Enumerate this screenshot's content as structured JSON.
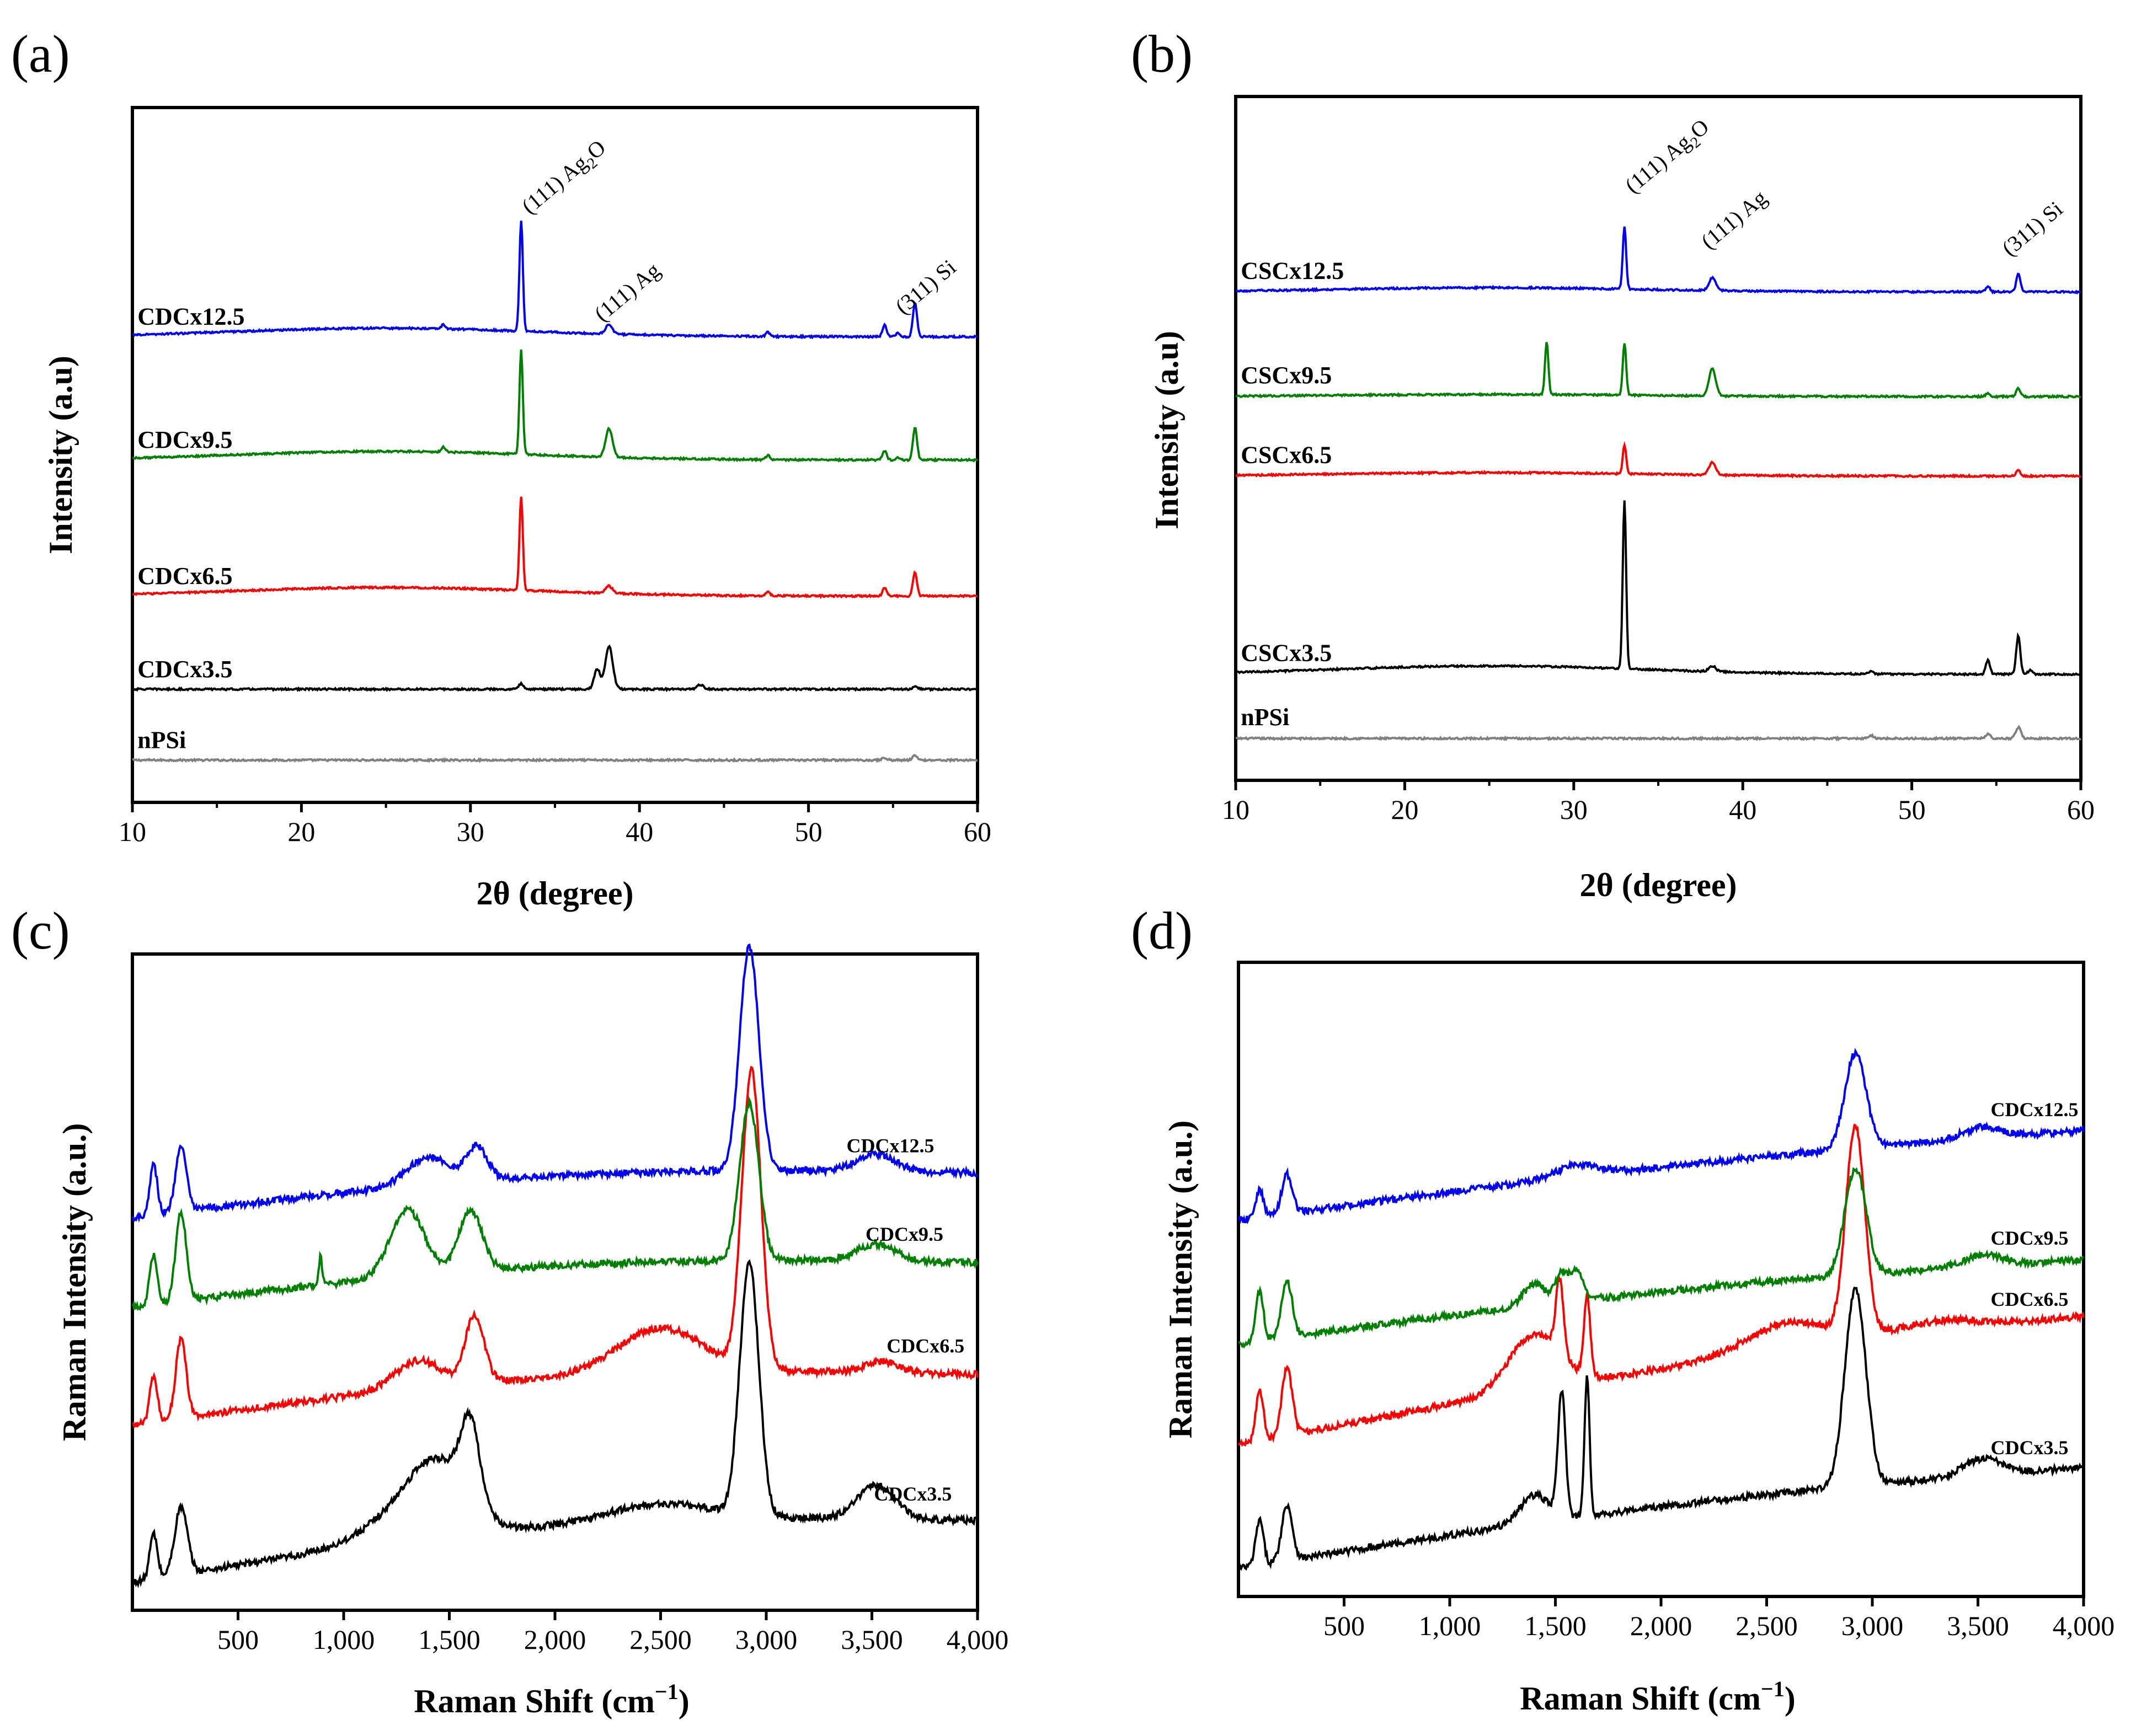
{
  "chart_data": [
    {
      "id": "a",
      "panel_label": "(a)",
      "type": "line",
      "xlabel": "2θ (degree)",
      "ylabel": "Intensity (a.u)",
      "xlim": [
        10,
        60
      ],
      "xticks": [
        10,
        20,
        30,
        40,
        50,
        60
      ],
      "xtick_labels": [
        "10",
        "20",
        "30",
        "40",
        "50",
        "60"
      ],
      "yticks": false,
      "series": [
        {
          "name": "nPSi",
          "color": "#808080",
          "baseline": 0.9,
          "hump": 0,
          "label_x": 10.3,
          "peaks": [
            [
              54.5,
              0.3,
              0.15
            ],
            [
              56.3,
              0.6,
              0.15
            ]
          ]
        },
        {
          "name": "CDCx3.5",
          "color": "#000000",
          "baseline": 10.8,
          "hump": 0,
          "label_x": 10.3,
          "peaks": [
            [
              33.0,
              0.8,
              0.15
            ],
            [
              37.5,
              2.8,
              0.18
            ],
            [
              38.2,
              6.0,
              0.22
            ],
            [
              43.6,
              0.6,
              0.2
            ],
            [
              56.3,
              0.3,
              0.15
            ]
          ]
        },
        {
          "name": "CDCx6.5",
          "color": "#ff0000",
          "baseline": 23.8,
          "hump": 1.2,
          "label_x": 10.3,
          "peaks": [
            [
              33.0,
              13.0,
              0.1
            ],
            [
              38.2,
              1.0,
              0.2
            ],
            [
              47.6,
              0.5,
              0.12
            ],
            [
              54.5,
              1.2,
              0.12
            ],
            [
              56.3,
              3.3,
              0.12
            ]
          ]
        },
        {
          "name": "CDCx9.5",
          "color": "#008000",
          "baseline": 42.8,
          "hump": 1.2,
          "label_x": 10.3,
          "peaks": [
            [
              28.4,
              0.7,
              0.12
            ],
            [
              33.0,
              14.5,
              0.1
            ],
            [
              38.2,
              4.0,
              0.2
            ],
            [
              47.6,
              0.6,
              0.12
            ],
            [
              54.5,
              1.3,
              0.12
            ],
            [
              55.3,
              0.4,
              0.12
            ],
            [
              56.3,
              4.5,
              0.12
            ]
          ]
        },
        {
          "name": "CDCx12.5",
          "color": "#0000ff",
          "baseline": 60.0,
          "hump": 1.2,
          "label_x": 10.3,
          "peaks": [
            [
              28.4,
              0.6,
              0.12
            ],
            [
              33.0,
              15.5,
              0.1
            ],
            [
              38.2,
              1.3,
              0.2
            ],
            [
              47.6,
              0.6,
              0.12
            ],
            [
              54.5,
              1.6,
              0.12
            ],
            [
              55.3,
              0.5,
              0.12
            ],
            [
              56.3,
              4.8,
              0.12
            ]
          ]
        }
      ],
      "annotations": [
        {
          "text": "(111) Ag",
          "sub": "2",
          "tail": "O",
          "x": 33.5,
          "y": 77
        },
        {
          "text": "(111) Ag",
          "sub": "",
          "tail": "",
          "x": 37.8,
          "y": 62
        },
        {
          "text": "(311) Si",
          "sub": "",
          "tail": "",
          "x": 55.6,
          "y": 63
        }
      ]
    },
    {
      "id": "b",
      "panel_label": "(b)",
      "type": "line",
      "xlabel": "2θ (degree)",
      "ylabel": "Intensity (a.u)",
      "xlim": [
        10,
        60
      ],
      "xticks": [
        10,
        20,
        30,
        40,
        50,
        60
      ],
      "xtick_labels": [
        "10",
        "20",
        "30",
        "40",
        "50",
        "60"
      ],
      "yticks": false,
      "series": [
        {
          "name": "nPSi",
          "color": "#808080",
          "baseline": 4.0,
          "hump": 0,
          "label_x": 10.3,
          "peaks": [
            [
              47.6,
              0.4,
              0.15
            ],
            [
              54.5,
              0.6,
              0.15
            ],
            [
              56.3,
              1.6,
              0.15
            ]
          ]
        },
        {
          "name": "CSCx3.5",
          "color": "#000000",
          "baseline": 13.2,
          "hump": 1.2,
          "label_x": 10.3,
          "peaks": [
            [
              33.0,
              24.0,
              0.1
            ],
            [
              38.2,
              0.8,
              0.2
            ],
            [
              47.6,
              0.5,
              0.12
            ],
            [
              54.5,
              2.0,
              0.12
            ],
            [
              56.3,
              5.5,
              0.12
            ],
            [
              57.0,
              0.6,
              0.12
            ]
          ]
        },
        {
          "name": "CSCx6.5",
          "color": "#ff0000",
          "baseline": 41.6,
          "hump": 0.5,
          "label_x": 10.3,
          "peaks": [
            [
              33.0,
              4.2,
              0.1
            ],
            [
              38.2,
              1.8,
              0.2
            ],
            [
              56.3,
              0.8,
              0.12
            ]
          ]
        },
        {
          "name": "CSCx9.5",
          "color": "#008000",
          "baseline": 53.0,
          "hump": 0.3,
          "label_x": 10.3,
          "peaks": [
            [
              28.4,
              7.5,
              0.1
            ],
            [
              33.0,
              7.5,
              0.1
            ],
            [
              38.2,
              3.9,
              0.2
            ],
            [
              54.5,
              0.5,
              0.12
            ],
            [
              56.3,
              1.2,
              0.12
            ]
          ]
        },
        {
          "name": "CSCx12.5",
          "color": "#0000ff",
          "baseline": 68.0,
          "hump": 0.6,
          "label_x": 10.3,
          "peaks": [
            [
              33.0,
              9.0,
              0.1
            ],
            [
              38.2,
              1.8,
              0.2
            ],
            [
              54.5,
              0.8,
              0.12
            ],
            [
              56.3,
              2.6,
              0.12
            ]
          ]
        }
      ],
      "annotations": [
        {
          "text": "(111) Ag",
          "sub": "2",
          "tail": "O",
          "x": 33.5,
          "y": 82
        },
        {
          "text": "(111) Ag",
          "sub": "",
          "tail": "",
          "x": 38.0,
          "y": 74
        },
        {
          "text": "(311) Si",
          "sub": "",
          "tail": "",
          "x": 55.8,
          "y": 73
        }
      ]
    },
    {
      "id": "c",
      "panel_label": "(c)",
      "type": "line",
      "xlabel": "Raman Shift (cm",
      "xlabel_sup": "−1",
      "xlabel_tail": ")",
      "ylabel": "Raman Intensity (a.u.)",
      "xlim": [
        0,
        4000
      ],
      "xticks": [
        500,
        1000,
        1500,
        2000,
        2500,
        3000,
        3500,
        4000
      ],
      "xtick_labels": [
        "500",
        "1,000",
        "1,500",
        "2,000",
        "2,500",
        "3,000",
        "3,500",
        "4,000"
      ],
      "yticks": false,
      "series": [
        {
          "name": "CDCx3.5",
          "color": "#000000",
          "start": 0,
          "end": 11,
          "bump": 4.4,
          "label_x": 3510,
          "peaks": [
            [
              100,
              8,
              18
            ],
            [
              230,
              12,
              30
            ],
            [
              1250,
              4,
              180
            ],
            [
              1450,
              12,
              140
            ],
            [
              1600,
              14,
              45
            ],
            [
              2500,
              3,
              250
            ],
            [
              2920,
              45,
              45
            ],
            [
              3520,
              6,
              90
            ]
          ]
        },
        {
          "name": "CDCx6.5",
          "color": "#ff0000",
          "start": 28,
          "end": 37,
          "bump": 4.0,
          "label_x": 3570,
          "peaks": [
            [
              100,
              8,
              18
            ],
            [
              230,
              14,
              25
            ],
            [
              1350,
              5,
              110
            ],
            [
              1620,
              12,
              45
            ],
            [
              2500,
              8,
              200
            ],
            [
              2930,
              53,
              45
            ],
            [
              3550,
              2,
              80
            ]
          ]
        },
        {
          "name": "CDCx9.5",
          "color": "#008000",
          "start": 49,
          "end": 57,
          "bump": 3.4,
          "label_x": 3470,
          "peaks": [
            [
              100,
              9,
              18
            ],
            [
              230,
              16,
              25
            ],
            [
              890,
              5,
              8
            ],
            [
              1300,
              12,
              80
            ],
            [
              1600,
              11,
              55
            ],
            [
              2920,
              28,
              45
            ],
            [
              3520,
              3,
              90
            ]
          ]
        },
        {
          "name": "CDCx12.5",
          "color": "#0000ff",
          "start": 65,
          "end": 73,
          "bump": 3.4,
          "label_x": 3380,
          "peaks": [
            [
              100,
              9,
              18
            ],
            [
              230,
              12,
              25
            ],
            [
              1400,
              5,
              100
            ],
            [
              1630,
              6,
              50
            ],
            [
              2920,
              40,
              45
            ],
            [
              3520,
              3,
              90
            ]
          ]
        }
      ]
    },
    {
      "id": "d",
      "panel_label": "(d)",
      "type": "line",
      "xlabel": "Raman Shift (cm",
      "xlabel_sup": "−1",
      "xlabel_tail": ")",
      "ylabel": "Raman Intensity (a.u.)",
      "xlim": [
        0,
        4000
      ],
      "xticks": [
        500,
        1000,
        1500,
        2000,
        2500,
        3000,
        3500,
        4000
      ],
      "xtick_labels": [
        "500",
        "1,000",
        "1,500",
        "2,000",
        "2,500",
        "3,000",
        "3,500",
        "4,000"
      ],
      "yticks": false,
      "series": [
        {
          "name": "CDCx3.5",
          "color": "#000000",
          "start": 0,
          "end": 18,
          "bump": 2.0,
          "label_x": 3560,
          "peaks": [
            [
              100,
              8,
              18
            ],
            [
              230,
              10,
              25
            ],
            [
              1400,
              5,
              70
            ],
            [
              1530,
              22,
              18
            ],
            [
              1650,
              25,
              12
            ],
            [
              2920,
              35,
              50
            ],
            [
              3520,
              3,
              90
            ]
          ]
        },
        {
          "name": "CDCx6.5",
          "color": "#ff0000",
          "start": 22,
          "end": 45,
          "bump": 2.0,
          "label_x": 3560,
          "peaks": [
            [
              100,
              9,
              18
            ],
            [
              230,
              12,
              25
            ],
            [
              1400,
              10,
              120
            ],
            [
              1520,
              13,
              18
            ],
            [
              1650,
              14,
              15
            ],
            [
              2600,
              5,
              200
            ],
            [
              2920,
              37,
              45
            ],
            [
              3300,
              2,
              200
            ]
          ]
        },
        {
          "name": "CDCx9.5",
          "color": "#008000",
          "start": 40,
          "end": 55,
          "bump": 1.8,
          "label_x": 3560,
          "peaks": [
            [
              100,
              9,
              18
            ],
            [
              230,
              10,
              25
            ],
            [
              1400,
              4,
              50
            ],
            [
              1530,
              5,
              30
            ],
            [
              1600,
              5,
              30
            ],
            [
              2920,
              19,
              50
            ],
            [
              3520,
              2,
              90
            ]
          ]
        },
        {
          "name": "CDCx12.5",
          "color": "#0000ff",
          "start": 62,
          "end": 78,
          "bump": 1.5,
          "label_x": 3560,
          "peaks": [
            [
              100,
              5,
              18
            ],
            [
              230,
              7,
              25
            ],
            [
              1600,
              2,
              100
            ],
            [
              2920,
              17,
              50
            ],
            [
              3520,
              2,
              90
            ]
          ]
        }
      ]
    }
  ]
}
